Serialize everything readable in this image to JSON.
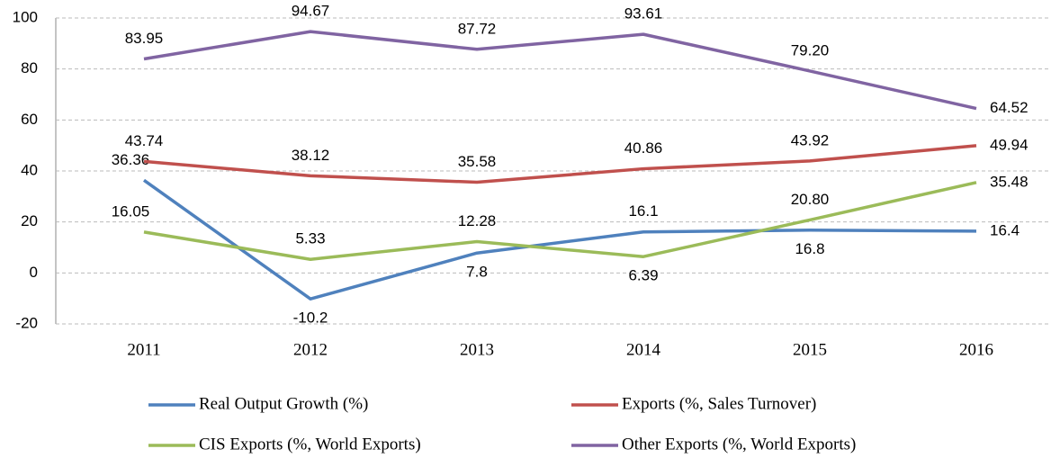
{
  "chart_data": {
    "type": "line",
    "categories": [
      "2011",
      "2012",
      "2013",
      "2014",
      "2015",
      "2016"
    ],
    "series": [
      {
        "name": "Real Output Growth (%)",
        "color": "#4f81bd",
        "values": [
          36.36,
          -10.2,
          7.8,
          16.1,
          16.8,
          16.4
        ],
        "value_labels": [
          "36.36",
          "-10.2",
          "7.8",
          "16.1",
          "16.8",
          "16.4"
        ]
      },
      {
        "name": "Exports (%, Sales Turnover)",
        "color": "#c0504d",
        "values": [
          43.74,
          38.12,
          35.58,
          40.86,
          43.92,
          49.94
        ],
        "value_labels": [
          "43.74",
          "38.12",
          "35.58",
          "40.86",
          "43.92",
          "49.94"
        ]
      },
      {
        "name": "CIS Exports (%, World Exports)",
        "color": "#9bbb59",
        "values": [
          16.05,
          5.33,
          12.28,
          6.39,
          20.8,
          35.48
        ],
        "value_labels": [
          "16.05",
          "5.33",
          "12.28",
          "6.39",
          "20.80",
          "35.48"
        ]
      },
      {
        "name": "Other Exports (%, World Exports)",
        "color": "#8064a2",
        "values": [
          83.95,
          94.67,
          87.72,
          93.61,
          79.2,
          64.52
        ],
        "value_labels": [
          "83.95",
          "94.67",
          "87.72",
          "93.61",
          "79.20",
          "64.52"
        ]
      }
    ],
    "ylim": [
      -20,
      100
    ],
    "yticks": [
      -20,
      0,
      20,
      40,
      60,
      80,
      100
    ],
    "grid": true
  }
}
